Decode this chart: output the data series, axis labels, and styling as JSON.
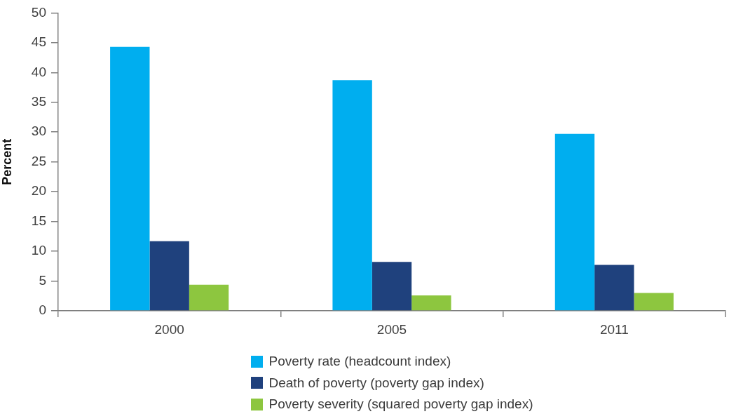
{
  "chart_data": {
    "type": "bar",
    "ylabel": "Percent",
    "categories": [
      "2000",
      "2005",
      "2011"
    ],
    "series": [
      {
        "name": "Poverty rate (headcount index)",
        "color": "#00aeef",
        "values": [
          44.3,
          38.7,
          29.7
        ]
      },
      {
        "name": "Death of poverty (poverty gap index)",
        "color": "#1f417d",
        "values": [
          11.7,
          8.2,
          7.7
        ]
      },
      {
        "name": "Poverty severity (squared poverty gap index)",
        "color": "#8dc63f",
        "values": [
          4.4,
          2.6,
          3.0
        ]
      }
    ],
    "ylim": [
      0,
      50
    ],
    "yticks": [
      0,
      5,
      10,
      15,
      20,
      25,
      30,
      35,
      40,
      45,
      50
    ],
    "grid": false,
    "legend": "bottom"
  }
}
